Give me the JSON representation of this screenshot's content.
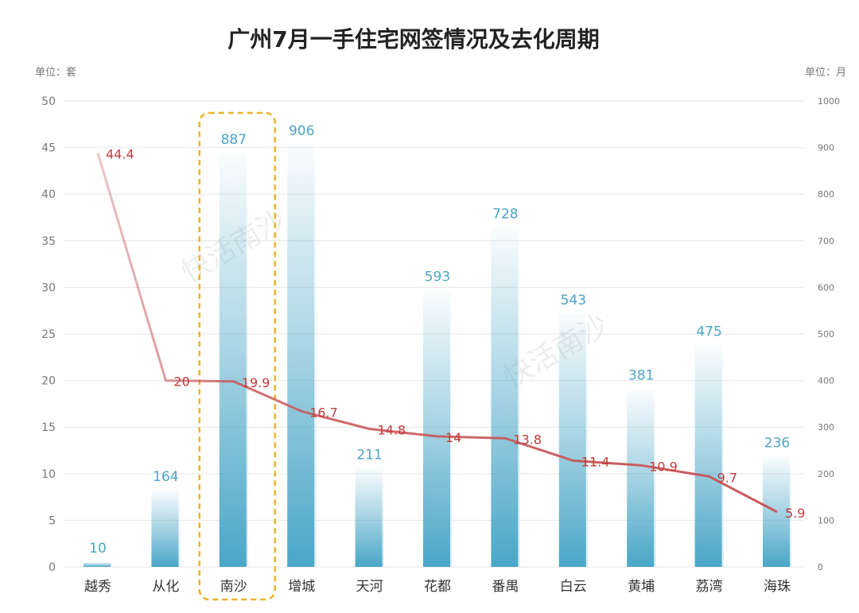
{
  "chart_data": {
    "type": "bar",
    "title": "广州7月一手住宅网签情况及去化周期",
    "left_unit": "单位：套",
    "right_unit": "单位：月",
    "categories": [
      "越秀",
      "从化",
      "南沙",
      "增城",
      "天河",
      "花都",
      "番禺",
      "白云",
      "黄埔",
      "荔湾",
      "海珠"
    ],
    "left_axis": {
      "ylim": [
        0,
        50
      ],
      "ticks": [
        0,
        5,
        10,
        15,
        20,
        25,
        30,
        35,
        40,
        45,
        50
      ]
    },
    "right_axis": {
      "ylim": [
        0,
        1000
      ],
      "ticks": [
        0,
        100,
        200,
        300,
        400,
        500,
        600,
        700,
        800,
        900,
        1000
      ]
    },
    "series": [
      {
        "type": "bar",
        "axis": "right",
        "values": [
          10,
          164,
          887,
          906,
          211,
          593,
          728,
          543,
          381,
          475,
          236
        ]
      },
      {
        "type": "line",
        "axis": "left",
        "values": [
          44.4,
          20,
          19.9,
          16.7,
          14.8,
          14,
          13.8,
          11.4,
          10.9,
          9.7,
          5.9
        ]
      }
    ],
    "highlight_category": "南沙",
    "grid": true,
    "colors": {
      "bar": "#4aa6c7",
      "line": "#c9585a",
      "highlight_box": "#e8b42a",
      "label_bar": "#4aa6c7",
      "label_line": "#c43a3a"
    }
  },
  "watermark": "快活南沙"
}
